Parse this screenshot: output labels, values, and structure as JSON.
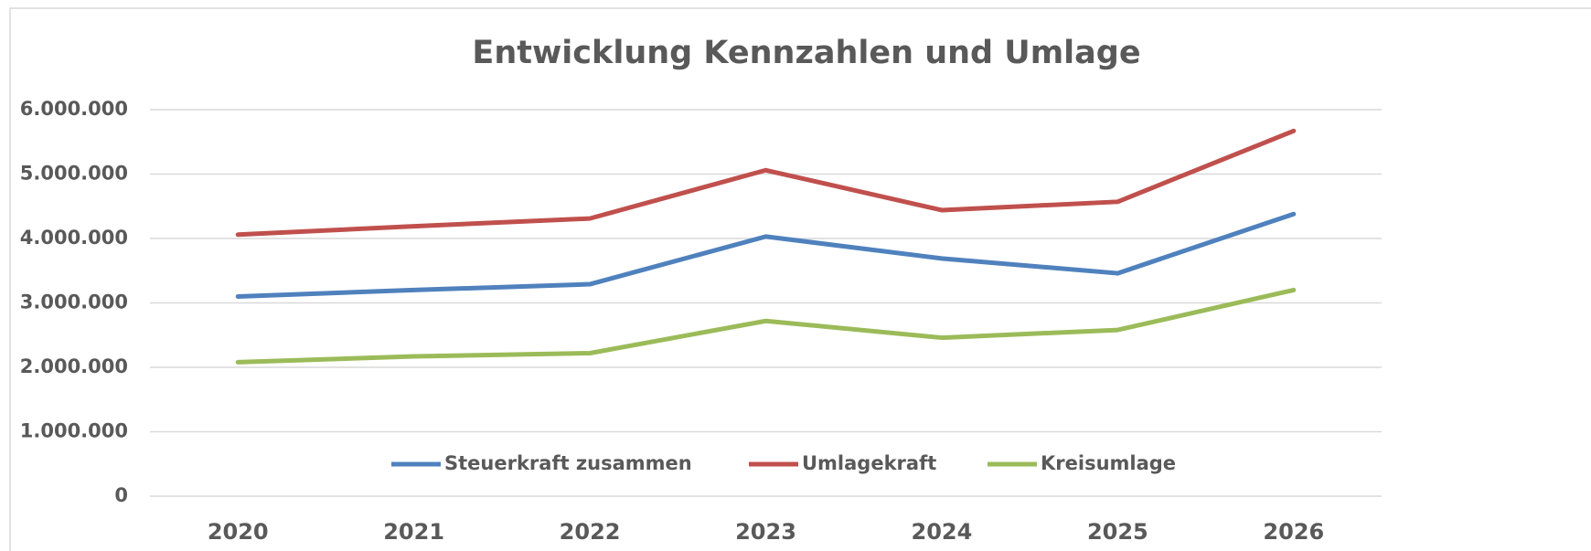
{
  "chart_data": {
    "type": "line",
    "title": "Entwicklung Kennzahlen und Umlage",
    "categories": [
      "2020",
      "2021",
      "2022",
      "2023",
      "2024",
      "2025",
      "2026"
    ],
    "series": [
      {
        "name": "Steuerkraft zusammen",
        "color": "#4f81bd",
        "values": [
          3100000,
          3200000,
          3290000,
          4030000,
          3690000,
          3460000,
          4380000
        ]
      },
      {
        "name": "Umlagekraft",
        "color": "#c0504d",
        "values": [
          4060000,
          4190000,
          4310000,
          5060000,
          4440000,
          4570000,
          5670000
        ]
      },
      {
        "name": "Kreisumlage",
        "color": "#9bbb59",
        "values": [
          2080000,
          2170000,
          2220000,
          2720000,
          2460000,
          2580000,
          3200000
        ]
      }
    ],
    "ylim": [
      0,
      6000000
    ],
    "yticks": [
      0,
      {
        "value": 1000000,
        "label": "1.000.000"
      },
      {
        "value": 2000000,
        "label": "2.000.000"
      },
      {
        "value": 3000000,
        "label": "3.000.000"
      },
      {
        "value": 4000000,
        "label": "4.000.000"
      },
      {
        "value": 5000000,
        "label": "5.000.000"
      },
      {
        "value": 6000000,
        "label": "6.000.000"
      }
    ],
    "grid": true,
    "legend": "bottom"
  }
}
